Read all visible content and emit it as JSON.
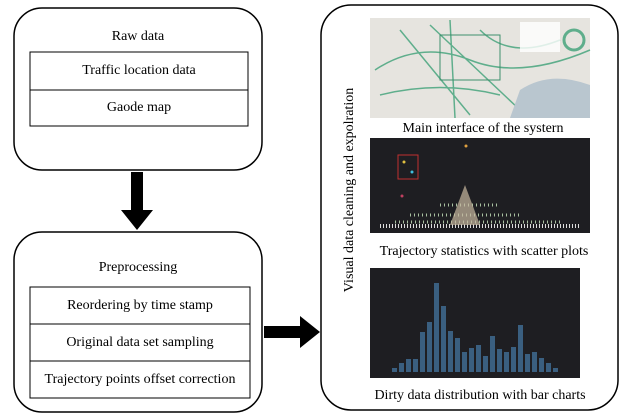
{
  "raw_data": {
    "title": "Raw data",
    "items": [
      "Traffic location data",
      "Gaode map"
    ]
  },
  "preprocessing": {
    "title": "Preprocessing",
    "items": [
      "Reordering by time stamp",
      "Original data set sampling",
      "Trajectory points offset correction"
    ]
  },
  "visual": {
    "title": "Visual data cleaning and expolration",
    "panels": [
      "Main interface of the systern",
      "Trajectory statistics with scatter plots",
      "Dirty data distribution with bar charts"
    ]
  }
}
